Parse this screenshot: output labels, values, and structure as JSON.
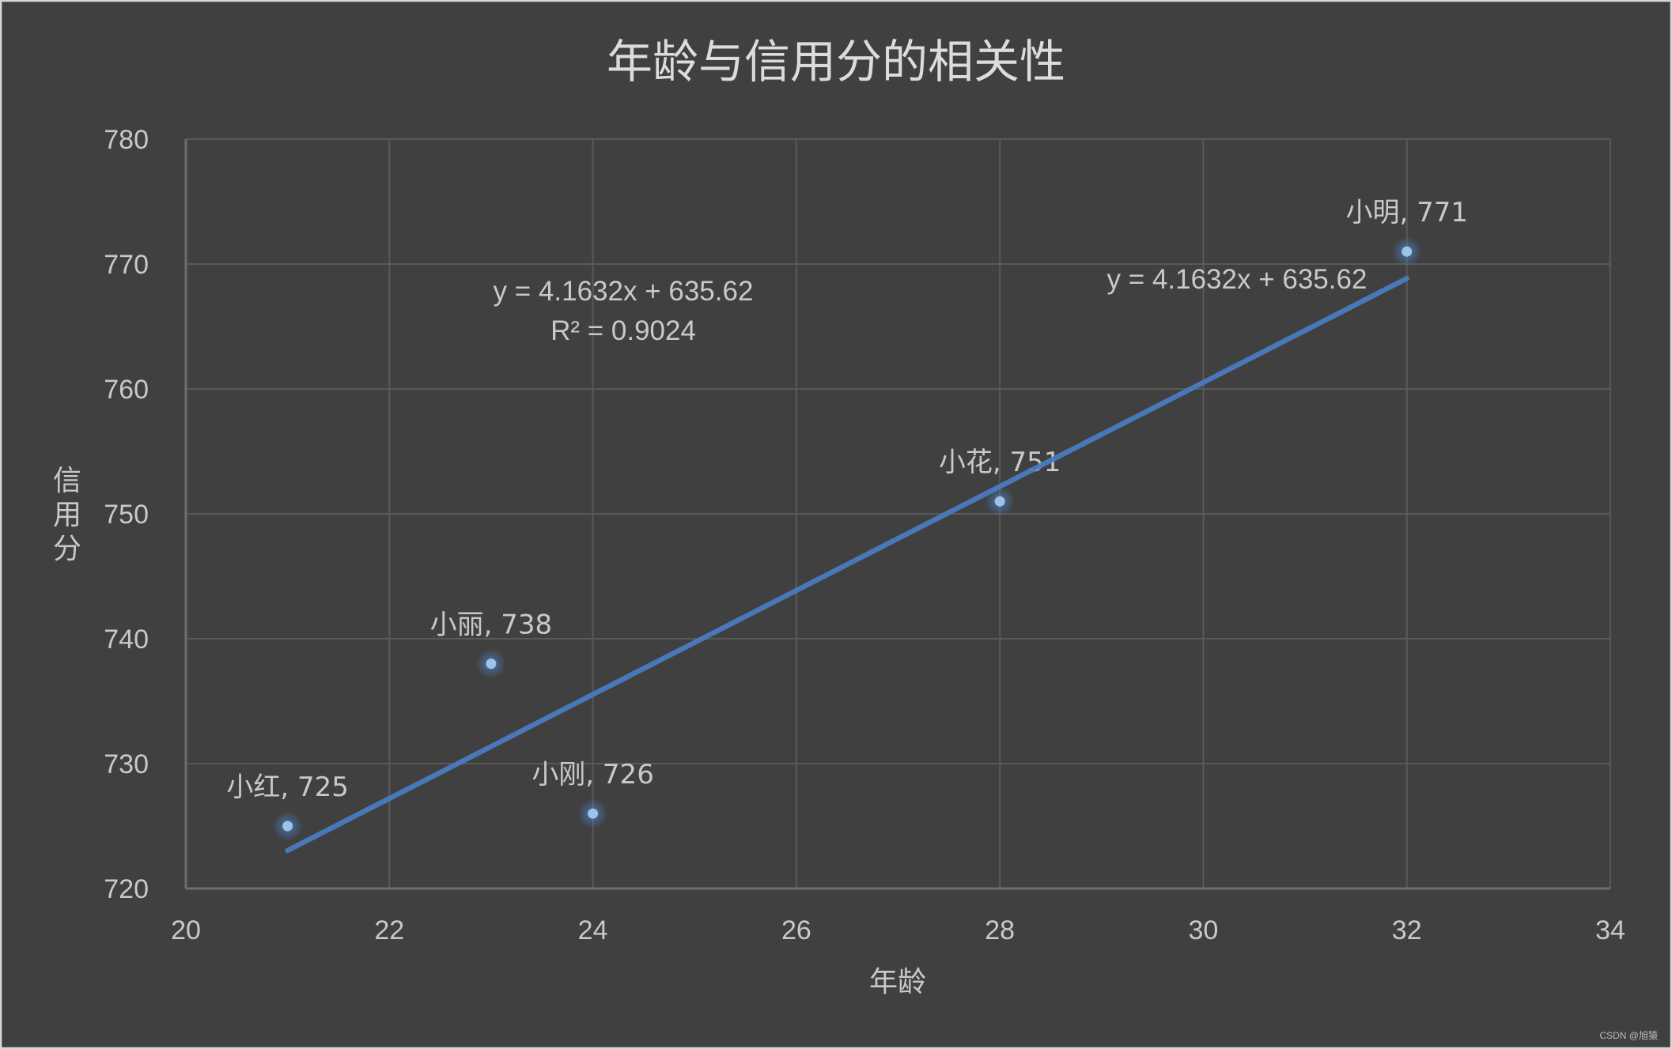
{
  "chart": {
    "title": "年龄与信用分的相关性",
    "xlabel": "年龄",
    "ylabel": "信用分",
    "watermark": "CSDN @旭猿",
    "equation_label_1": "y = 4.1632x + 635.62",
    "r2_label": "R² = 0.9024",
    "equation_label_2": "y = 4.1632x + 635.62"
  },
  "chart_data": {
    "type": "scatter",
    "title": "年龄与信用分的相关性",
    "xlabel": "年龄",
    "ylabel": "信用分",
    "xlim": [
      20,
      34
    ],
    "ylim": [
      720,
      780
    ],
    "x_ticks": [
      20,
      22,
      24,
      26,
      28,
      30,
      32,
      34
    ],
    "y_ticks": [
      720,
      730,
      740,
      750,
      760,
      770,
      780
    ],
    "grid": true,
    "legend": "none",
    "points": [
      {
        "name": "小红",
        "x": 21,
        "y": 725,
        "label": "小红, 725"
      },
      {
        "name": "小丽",
        "x": 23,
        "y": 738,
        "label": "小丽, 738"
      },
      {
        "name": "小刚",
        "x": 24,
        "y": 726,
        "label": "小刚, 726"
      },
      {
        "name": "小花",
        "x": 28,
        "y": 751,
        "label": "小花, 751"
      },
      {
        "name": "小明",
        "x": 32,
        "y": 771,
        "label": "小明, 771"
      }
    ],
    "trendline": {
      "type": "linear",
      "slope": 4.1632,
      "intercept": 635.62,
      "r_squared": 0.9024,
      "x_range": [
        21,
        32
      ],
      "equation": "y = 4.1632x + 635.62",
      "r2_text": "R² = 0.9024"
    },
    "colors": {
      "background": "#404040",
      "grid": "#595959",
      "marker": "#9dc3e6",
      "trendline": "#4a7bbf",
      "text": "#c9c9c9"
    }
  }
}
